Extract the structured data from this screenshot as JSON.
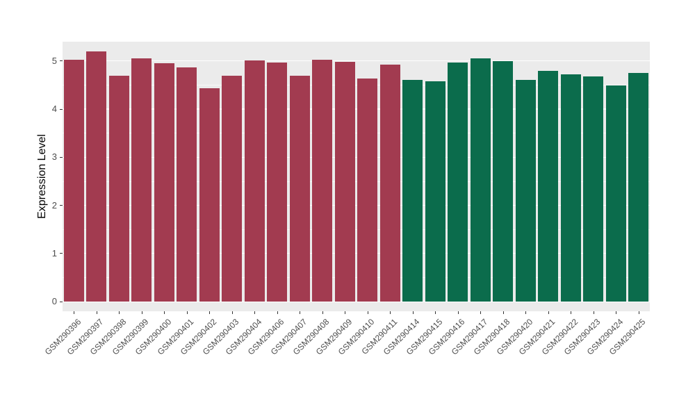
{
  "chart_data": {
    "type": "bar",
    "title": "",
    "xlabel": "",
    "ylabel": "Expression Level",
    "ylim": [
      -0.2,
      5.4
    ],
    "yticks": [
      0,
      1,
      2,
      3,
      4,
      5
    ],
    "yticks_minor": [
      0.5,
      1.5,
      2.5,
      3.5,
      4.5
    ],
    "grid": "on",
    "legend": "none",
    "panel_background": "#EBEBEB",
    "grid_color": "#FFFFFF",
    "bar_width_fraction": 0.9,
    "categories": [
      "GSM290396",
      "GSM290397",
      "GSM290398",
      "GSM290399",
      "GSM290400",
      "GSM290401",
      "GSM290402",
      "GSM290403",
      "GSM290404",
      "GSM290406",
      "GSM290407",
      "GSM290408",
      "GSM290409",
      "GSM290410",
      "GSM290411",
      "GSM290414",
      "GSM290415",
      "GSM290416",
      "GSM290417",
      "GSM290418",
      "GSM290420",
      "GSM290421",
      "GSM290422",
      "GSM290423",
      "GSM290424",
      "GSM290425"
    ],
    "values": [
      5.03,
      5.2,
      4.7,
      5.06,
      4.95,
      4.87,
      4.43,
      4.7,
      5.01,
      4.97,
      4.7,
      5.02,
      4.98,
      4.63,
      4.92,
      4.6,
      4.58,
      4.96,
      5.06,
      4.99,
      4.6,
      4.8,
      4.72,
      4.68,
      4.49,
      4.75
    ],
    "groups": [
      "g1",
      "g1",
      "g1",
      "g1",
      "g1",
      "g1",
      "g1",
      "g1",
      "g1",
      "g1",
      "g1",
      "g1",
      "g1",
      "g1",
      "g1",
      "g2",
      "g2",
      "g2",
      "g2",
      "g2",
      "g2",
      "g2",
      "g2",
      "g2",
      "g2",
      "g2"
    ],
    "colors": {
      "g1": "#A23B50",
      "g2": "#0B6C4C"
    }
  }
}
